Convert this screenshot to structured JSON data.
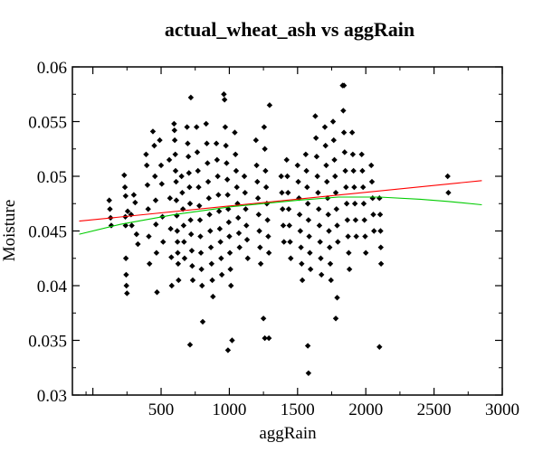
{
  "chart_data": {
    "type": "scatter",
    "title": "actual_wheat_ash vs aggRain",
    "xlabel": "aggRain",
    "ylabel": "Moisture",
    "xlim": [
      -150,
      3000
    ],
    "ylim": [
      0.03,
      0.06
    ],
    "x_ticks": [
      {
        "value": 0,
        "label": ""
      },
      {
        "value": 500,
        "label": "500"
      },
      {
        "value": 1000,
        "label": "1000"
      },
      {
        "value": 1500,
        "label": "1500"
      },
      {
        "value": 2000,
        "label": "2000"
      },
      {
        "value": 2500,
        "label": "2500"
      },
      {
        "value": 3000,
        "label": "3000"
      }
    ],
    "y_ticks": [
      {
        "value": 0.03,
        "label": "0.03"
      },
      {
        "value": 0.035,
        "label": "0.035"
      },
      {
        "value": 0.04,
        "label": "0.04"
      },
      {
        "value": 0.045,
        "label": "0.045"
      },
      {
        "value": 0.05,
        "label": "0.05"
      },
      {
        "value": 0.055,
        "label": "0.055"
      },
      {
        "value": 0.06,
        "label": "0.06"
      }
    ],
    "grid": false,
    "legend": "none",
    "colors": {
      "points": "#000000",
      "linear_fit": "#ff0000",
      "smooth_fit": "#00cc00",
      "axes": "#000000"
    },
    "series": [
      {
        "kind": "points",
        "marker": "diamond",
        "points": [
          [
            120,
            0.0478
          ],
          [
            125,
            0.047
          ],
          [
            130,
            0.0462
          ],
          [
            135,
            0.0455
          ],
          [
            230,
            0.0501
          ],
          [
            235,
            0.049
          ],
          [
            240,
            0.0482
          ],
          [
            238,
            0.0463
          ],
          [
            240,
            0.0455
          ],
          [
            242,
            0.0425
          ],
          [
            244,
            0.041
          ],
          [
            246,
            0.04
          ],
          [
            250,
            0.0393
          ],
          [
            255,
            0.0468
          ],
          [
            280,
            0.0465
          ],
          [
            285,
            0.0455
          ],
          [
            300,
            0.0483
          ],
          [
            310,
            0.0476
          ],
          [
            320,
            0.0447
          ],
          [
            330,
            0.0438
          ],
          [
            390,
            0.052
          ],
          [
            395,
            0.051
          ],
          [
            400,
            0.0492
          ],
          [
            405,
            0.047
          ],
          [
            410,
            0.0445
          ],
          [
            415,
            0.042
          ],
          [
            440,
            0.0541
          ],
          [
            450,
            0.0528
          ],
          [
            455,
            0.05
          ],
          [
            460,
            0.0478
          ],
          [
            462,
            0.0456
          ],
          [
            466,
            0.043
          ],
          [
            470,
            0.0394
          ],
          [
            490,
            0.0533
          ],
          [
            500,
            0.051
          ],
          [
            505,
            0.0493
          ],
          [
            510,
            0.0463
          ],
          [
            515,
            0.044
          ],
          [
            560,
            0.0515
          ],
          [
            565,
            0.048
          ],
          [
            570,
            0.0452
          ],
          [
            575,
            0.0426
          ],
          [
            578,
            0.04
          ],
          [
            595,
            0.0548
          ],
          [
            598,
            0.0542
          ],
          [
            600,
            0.0533
          ],
          [
            604,
            0.052
          ],
          [
            606,
            0.0505
          ],
          [
            610,
            0.0495
          ],
          [
            612,
            0.0478
          ],
          [
            615,
            0.0464
          ],
          [
            618,
            0.045
          ],
          [
            620,
            0.044
          ],
          [
            622,
            0.043
          ],
          [
            625,
            0.042
          ],
          [
            628,
            0.0405
          ],
          [
            650,
            0.05
          ],
          [
            655,
            0.0485
          ],
          [
            660,
            0.047
          ],
          [
            665,
            0.0455
          ],
          [
            668,
            0.044
          ],
          [
            672,
            0.0425
          ],
          [
            690,
            0.0545
          ],
          [
            695,
            0.053
          ],
          [
            700,
            0.0518
          ],
          [
            704,
            0.0503
          ],
          [
            708,
            0.049
          ],
          [
            712,
            0.0475
          ],
          [
            716,
            0.046
          ],
          [
            720,
            0.0447
          ],
          [
            725,
            0.0432
          ],
          [
            728,
            0.0418
          ],
          [
            732,
            0.0405
          ],
          [
            712,
            0.0346
          ],
          [
            718,
            0.0572
          ],
          [
            760,
            0.0545
          ],
          [
            765,
            0.0522
          ],
          [
            770,
            0.0505
          ],
          [
            775,
            0.049
          ],
          [
            780,
            0.0473
          ],
          [
            785,
            0.046
          ],
          [
            788,
            0.0445
          ],
          [
            792,
            0.043
          ],
          [
            796,
            0.0415
          ],
          [
            800,
            0.04
          ],
          [
            805,
            0.0367
          ],
          [
            830,
            0.0548
          ],
          [
            835,
            0.053
          ],
          [
            840,
            0.0512
          ],
          [
            845,
            0.0495
          ],
          [
            850,
            0.048
          ],
          [
            855,
            0.0465
          ],
          [
            860,
            0.045
          ],
          [
            865,
            0.0435
          ],
          [
            870,
            0.042
          ],
          [
            875,
            0.0405
          ],
          [
            880,
            0.039
          ],
          [
            905,
            0.053
          ],
          [
            910,
            0.0515
          ],
          [
            915,
            0.05
          ],
          [
            920,
            0.0483
          ],
          [
            925,
            0.0468
          ],
          [
            930,
            0.0452
          ],
          [
            935,
            0.044
          ],
          [
            940,
            0.0425
          ],
          [
            945,
            0.041
          ],
          [
            960,
            0.0575
          ],
          [
            965,
            0.057
          ],
          [
            970,
            0.0545
          ],
          [
            975,
            0.0528
          ],
          [
            980,
            0.0512
          ],
          [
            985,
            0.0497
          ],
          [
            988,
            0.0483
          ],
          [
            992,
            0.047
          ],
          [
            996,
            0.0458
          ],
          [
            1000,
            0.0445
          ],
          [
            1004,
            0.043
          ],
          [
            1008,
            0.0415
          ],
          [
            1012,
            0.04
          ],
          [
            990,
            0.0341
          ],
          [
            1020,
            0.035
          ],
          [
            1040,
            0.054
          ],
          [
            1045,
            0.052
          ],
          [
            1050,
            0.0505
          ],
          [
            1055,
            0.049
          ],
          [
            1060,
            0.0475
          ],
          [
            1065,
            0.0462
          ],
          [
            1070,
            0.0448
          ],
          [
            1075,
            0.0435
          ],
          [
            1110,
            0.05
          ],
          [
            1115,
            0.0485
          ],
          [
            1120,
            0.047
          ],
          [
            1125,
            0.0455
          ],
          [
            1130,
            0.0442
          ],
          [
            1135,
            0.0425
          ],
          [
            1195,
            0.0533
          ],
          [
            1200,
            0.051
          ],
          [
            1205,
            0.0495
          ],
          [
            1210,
            0.048
          ],
          [
            1215,
            0.0465
          ],
          [
            1220,
            0.045
          ],
          [
            1225,
            0.0435
          ],
          [
            1230,
            0.042
          ],
          [
            1255,
            0.0545
          ],
          [
            1260,
            0.0525
          ],
          [
            1265,
            0.0505
          ],
          [
            1270,
            0.049
          ],
          [
            1275,
            0.0475
          ],
          [
            1280,
            0.046
          ],
          [
            1285,
            0.0445
          ],
          [
            1290,
            0.043
          ],
          [
            1295,
            0.0565
          ],
          [
            1250,
            0.037
          ],
          [
            1260,
            0.0352
          ],
          [
            1290,
            0.0352
          ],
          [
            1380,
            0.05
          ],
          [
            1385,
            0.0485
          ],
          [
            1390,
            0.047
          ],
          [
            1395,
            0.0455
          ],
          [
            1400,
            0.044
          ],
          [
            1420,
            0.0515
          ],
          [
            1425,
            0.05
          ],
          [
            1430,
            0.0485
          ],
          [
            1435,
            0.047
          ],
          [
            1440,
            0.0455
          ],
          [
            1445,
            0.044
          ],
          [
            1450,
            0.0425
          ],
          [
            1500,
            0.051
          ],
          [
            1505,
            0.0495
          ],
          [
            1510,
            0.048
          ],
          [
            1515,
            0.0465
          ],
          [
            1520,
            0.045
          ],
          [
            1525,
            0.0435
          ],
          [
            1530,
            0.042
          ],
          [
            1535,
            0.0405
          ],
          [
            1560,
            0.052
          ],
          [
            1565,
            0.0505
          ],
          [
            1570,
            0.049
          ],
          [
            1575,
            0.0475
          ],
          [
            1580,
            0.046
          ],
          [
            1585,
            0.0445
          ],
          [
            1590,
            0.043
          ],
          [
            1595,
            0.0415
          ],
          [
            1575,
            0.0345
          ],
          [
            1580,
            0.032
          ],
          [
            1630,
            0.0555
          ],
          [
            1635,
            0.0535
          ],
          [
            1640,
            0.0518
          ],
          [
            1645,
            0.05
          ],
          [
            1650,
            0.0485
          ],
          [
            1655,
            0.047
          ],
          [
            1660,
            0.0455
          ],
          [
            1665,
            0.044
          ],
          [
            1670,
            0.0425
          ],
          [
            1675,
            0.041
          ],
          [
            1700,
            0.0545
          ],
          [
            1705,
            0.0528
          ],
          [
            1710,
            0.051
          ],
          [
            1715,
            0.0495
          ],
          [
            1720,
            0.048
          ],
          [
            1725,
            0.0465
          ],
          [
            1730,
            0.045
          ],
          [
            1735,
            0.0435
          ],
          [
            1740,
            0.042
          ],
          [
            1745,
            0.0405
          ],
          [
            1760,
            0.055
          ],
          [
            1765,
            0.0533
          ],
          [
            1770,
            0.0515
          ],
          [
            1775,
            0.05
          ],
          [
            1780,
            0.0485
          ],
          [
            1785,
            0.047
          ],
          [
            1790,
            0.0455
          ],
          [
            1795,
            0.044
          ],
          [
            1790,
            0.0389
          ],
          [
            1780,
            0.037
          ],
          [
            1830,
            0.0583
          ],
          [
            1840,
            0.0583
          ],
          [
            1835,
            0.056
          ],
          [
            1840,
            0.054
          ],
          [
            1845,
            0.0522
          ],
          [
            1850,
            0.0505
          ],
          [
            1855,
            0.049
          ],
          [
            1860,
            0.0475
          ],
          [
            1865,
            0.046
          ],
          [
            1870,
            0.0445
          ],
          [
            1875,
            0.043
          ],
          [
            1880,
            0.0415
          ],
          [
            1900,
            0.054
          ],
          [
            1905,
            0.052
          ],
          [
            1910,
            0.0505
          ],
          [
            1915,
            0.049
          ],
          [
            1920,
            0.0475
          ],
          [
            1925,
            0.046
          ],
          [
            1930,
            0.0445
          ],
          [
            1970,
            0.052
          ],
          [
            1975,
            0.0505
          ],
          [
            1980,
            0.049
          ],
          [
            1985,
            0.0475
          ],
          [
            1990,
            0.046
          ],
          [
            1995,
            0.0445
          ],
          [
            2000,
            0.043
          ],
          [
            2040,
            0.051
          ],
          [
            2045,
            0.0495
          ],
          [
            2050,
            0.048
          ],
          [
            2055,
            0.0465
          ],
          [
            2060,
            0.045
          ],
          [
            2100,
            0.048
          ],
          [
            2105,
            0.0465
          ],
          [
            2108,
            0.045
          ],
          [
            2110,
            0.0435
          ],
          [
            2112,
            0.042
          ],
          [
            2100,
            0.0344
          ],
          [
            2600,
            0.05
          ],
          [
            2605,
            0.0485
          ]
        ]
      },
      {
        "kind": "line",
        "points": [
          [
            -100,
            0.0459
          ],
          [
            2850,
            0.0496
          ]
        ]
      },
      {
        "kind": "line",
        "points": [
          [
            -100,
            0.0447
          ],
          [
            200,
            0.0456
          ],
          [
            600,
            0.0465
          ],
          [
            1000,
            0.0472
          ],
          [
            1500,
            0.0478
          ],
          [
            1800,
            0.0481
          ],
          [
            2100,
            0.0481
          ],
          [
            2400,
            0.0479
          ],
          [
            2600,
            0.0477
          ],
          [
            2850,
            0.0474
          ]
        ]
      }
    ]
  }
}
